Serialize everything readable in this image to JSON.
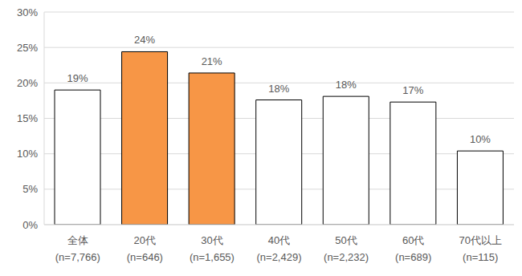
{
  "chart_data": {
    "type": "bar",
    "categories": [
      "全体\n(n=7,766)",
      "20代\n(n=646)",
      "30代\n(n=1,655)",
      "40代\n(n=2,429)",
      "50代\n(n=2,232)",
      "60代\n(n=689)",
      "70代以上\n(n=115)"
    ],
    "values": [
      19,
      24.4,
      21.4,
      17.6,
      18.1,
      17.3,
      10.4
    ],
    "value_labels": [
      "19%",
      "24%",
      "21%",
      "18%",
      "18%",
      "17%",
      "10%"
    ],
    "colors": [
      "#ffffff",
      "#f79646",
      "#f79646",
      "#ffffff",
      "#ffffff",
      "#ffffff",
      "#ffffff"
    ],
    "ylim": [
      0,
      30
    ],
    "yticks": [
      {
        "value": 0,
        "label": "0%"
      },
      {
        "value": 5,
        "label": "5%"
      },
      {
        "value": 10,
        "label": "10%"
      },
      {
        "value": 15,
        "label": "15%"
      },
      {
        "value": 20,
        "label": "20%"
      },
      {
        "value": 25,
        "label": "25%"
      },
      {
        "value": 30,
        "label": "30%"
      }
    ],
    "grid": true,
    "data_labels": true
  }
}
